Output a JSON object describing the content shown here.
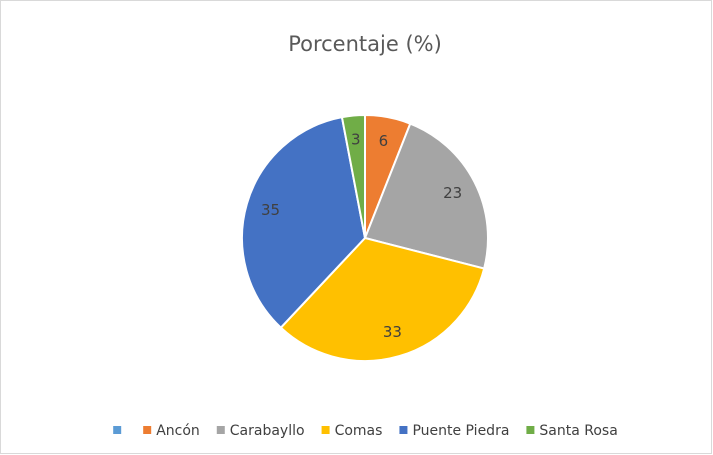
{
  "chart_data": {
    "type": "pie",
    "title": "Porcentaje (%)",
    "categories": [
      null,
      "Ancón",
      "Carabayllo",
      "Comas",
      "Puente Piedra",
      "Santa Rosa"
    ],
    "values": [
      0,
      6,
      23,
      33,
      35,
      3
    ],
    "colors": [
      "#5b9bd5",
      "#ed7d31",
      "#a5a5a5",
      "#ffc000",
      "#4472c4",
      "#70ad47"
    ],
    "legend": "bottom"
  }
}
